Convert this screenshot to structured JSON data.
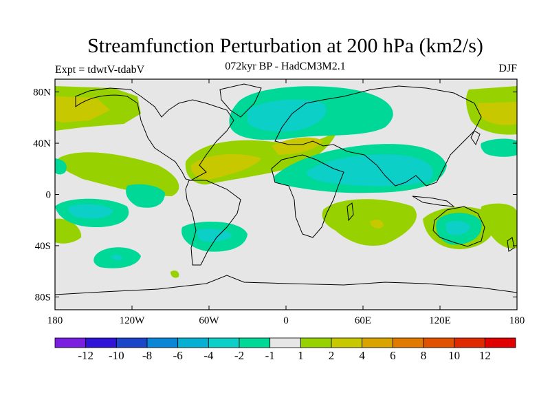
{
  "header": {
    "title": "Streamfunction Perturbation at 200 hPa (km2/s)",
    "subtitle": "072kyr BP - HadCM3M2.1",
    "expt": "Expt = tdwtV-tdabV",
    "season": "DJF"
  },
  "axes": {
    "lat_labels": [
      "80N",
      "40N",
      "0",
      "40S",
      "80S"
    ],
    "lon_labels": [
      "180",
      "120W",
      "60W",
      "0",
      "60E",
      "120E",
      "180"
    ]
  },
  "colorbar": {
    "labels": [
      "-12",
      "-10",
      "-8",
      "-6",
      "-4",
      "-2",
      "-1",
      "1",
      "2",
      "4",
      "6",
      "8",
      "10",
      "12"
    ],
    "colors": [
      "#7a1fe0",
      "#2f14d8",
      "#1c46c8",
      "#0a86d6",
      "#06b0d2",
      "#0ccfc8",
      "#00d897",
      "#e6e6e6",
      "#97d200",
      "#c8c800",
      "#d9a300",
      "#e07a00",
      "#e05200",
      "#df2a00",
      "#e00000"
    ]
  },
  "map": {
    "background": "#e6e6e6",
    "land_outline": "#000000"
  },
  "chart_data": {
    "type": "heatmap",
    "title": "Streamfunction Perturbation at 200 hPa (km2/s)",
    "subtitle": "072kyr BP - HadCM3M2.1",
    "variable": "Streamfunction perturbation",
    "level": "200 hPa",
    "units": "km2/s",
    "season": "DJF",
    "experiment": "tdwtV-tdabV",
    "contour_levels": [
      -12,
      -10,
      -8,
      -6,
      -4,
      -2,
      -1,
      1,
      2,
      4,
      6,
      8,
      10,
      12
    ],
    "xlim": [
      -180,
      180
    ],
    "ylim": [
      -90,
      90
    ],
    "x_ticks": [
      -180,
      -120,
      -60,
      0,
      60,
      120,
      180
    ],
    "y_ticks": [
      80,
      40,
      0,
      -40,
      -80
    ]
  }
}
